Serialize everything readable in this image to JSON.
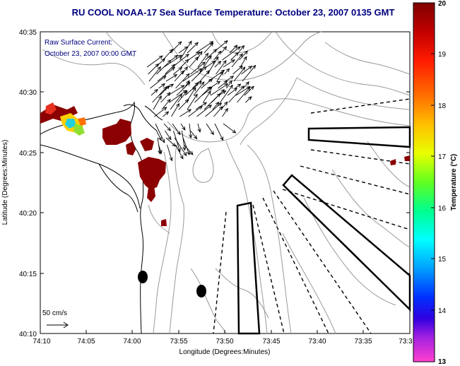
{
  "title": "RU COOL  NOAA-17  Sea Surface Temperature:  October 23, 2007 0135 GMT",
  "current_label_line1": "Raw Surface Current:",
  "current_label_line2": "October 23, 2007 00:00 GMT",
  "scale_label": "50 cm/s",
  "y_axis_label": "Latitude (Degrees:Minutes)",
  "x_axis_label": "Longitude (Degrees:Minutes)",
  "y_ticks": [
    "40:35",
    "40:30",
    "40:25",
    "40:20",
    "40:15",
    "40:10"
  ],
  "x_ticks": [
    "74:10",
    "74:05",
    "74:00",
    "73:55",
    "73:50",
    "73:45",
    "73:40",
    "73:35",
    "73:3"
  ],
  "colorbar": {
    "label": "Temperature (°C)",
    "ticks": [
      "20",
      "19",
      "18",
      "17",
      "16",
      "15",
      "14",
      "13"
    ]
  },
  "colors": {
    "title": "#000080",
    "annotation": "#000080",
    "land_sst": "#8b0000",
    "contour": "#999999"
  }
}
